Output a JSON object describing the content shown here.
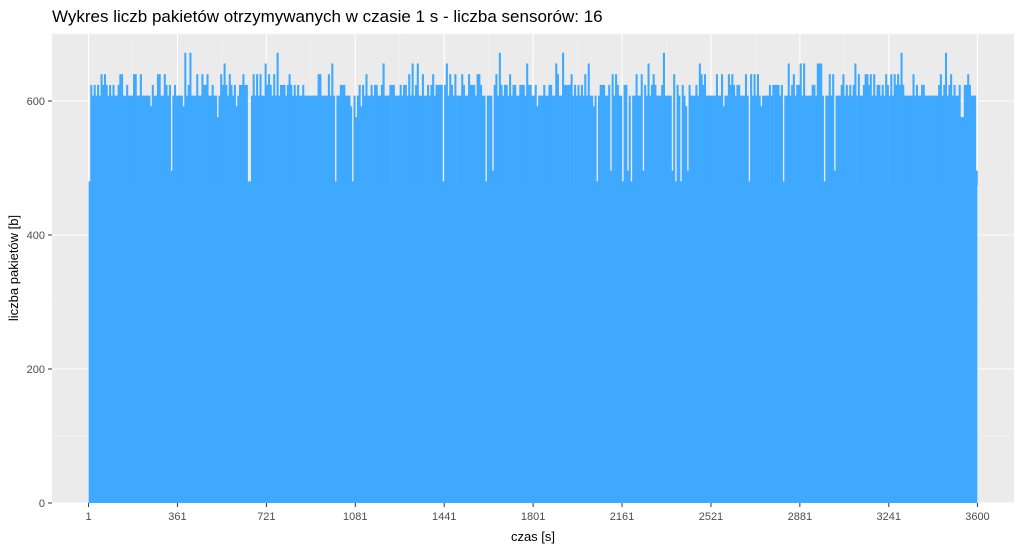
{
  "chart_data": {
    "type": "bar",
    "title": "Wykres liczb pakietów otrzymywanych w czasie 1 s - liczba sensorów: 16",
    "xlabel": "czas [s]",
    "ylabel": "liczba pakietów [b]",
    "x_range": [
      1,
      3600
    ],
    "xlim": [
      -147,
      3748
    ],
    "ylim": [
      0,
      700
    ],
    "x_ticks": [
      1,
      361,
      721,
      1081,
      1441,
      1801,
      2161,
      2521,
      2881,
      3241,
      3600
    ],
    "x_tick_labels": [
      "1",
      "361",
      "721",
      "1081",
      "1441",
      "1801",
      "2161",
      "2521",
      "2881",
      "3241",
      "3600"
    ],
    "y_ticks": [
      0,
      200,
      400,
      600
    ],
    "y_tick_labels": [
      "0",
      "200",
      "400",
      "600"
    ],
    "fill_color": "#3ea9ff",
    "panel_background": "#ebebeb",
    "grid": true,
    "baseline_value": 475,
    "typical_range": [
      576,
      624
    ],
    "peak_values": [
      656,
      672,
      656,
      640,
      672,
      656,
      656,
      672,
      640,
      656,
      656,
      672,
      640,
      656,
      672,
      656
    ],
    "min_values": [
      496,
      480,
      496,
      496,
      480,
      496,
      496,
      480
    ],
    "first_value": 480,
    "last_value": 496,
    "series_note": "packets received per 1-second bin over 3600 seconds; most bars between ~500 and ~670"
  }
}
